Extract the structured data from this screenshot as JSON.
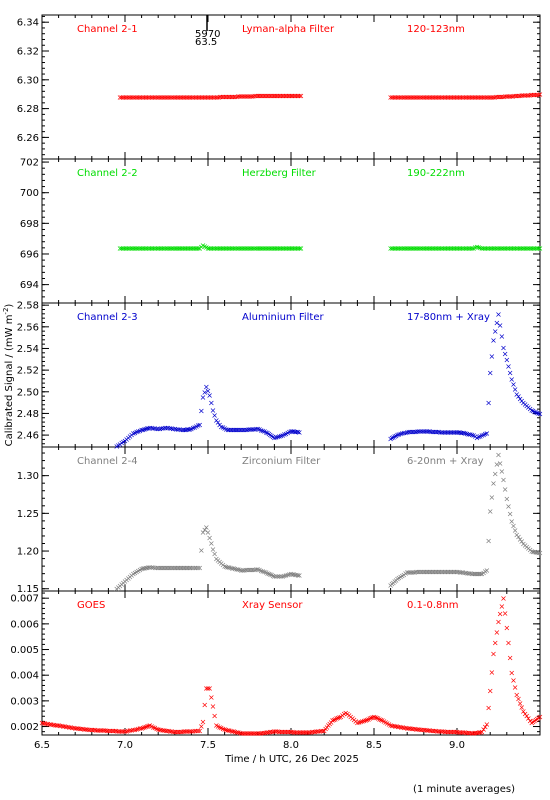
{
  "chart_data": {
    "type": "scatter",
    "xlabel": "Time / h UTC, 26 Dec 2025",
    "ylabel": "Calibrated Signal / (mW m",
    "ylabel_sup": "-2",
    "ylabel_close": ")",
    "footnote": "(1 minute averages)",
    "x_range": [
      6.5,
      9.5
    ],
    "x_ticks": [
      6.5,
      7.0,
      7.5,
      8.0,
      8.5,
      9.0
    ],
    "x_tick_labels": [
      "6.5",
      "7.0",
      "7.5",
      "8.0",
      "8.5",
      "9.0"
    ],
    "marker": {
      "label_top": "5970",
      "label_bottom": "63.5",
      "x": 7.5
    },
    "panels": [
      {
        "channel": "Channel 2-1",
        "filter": "Lyman-alpha Filter",
        "band": "120-123nm",
        "color": "#ff0000",
        "ylim": [
          6.245,
          6.345
        ],
        "y_ticks": [
          6.26,
          6.28,
          6.3,
          6.32,
          6.34
        ],
        "y_tick_labels": [
          "6.26",
          "6.28",
          "6.30",
          "6.32",
          "6.34"
        ],
        "series": [
          {
            "x": [
              6.97,
              7.2,
              7.5,
              7.8,
              8.06
            ],
            "y": [
              6.288,
              6.288,
              6.288,
              6.289,
              6.289
            ]
          },
          {
            "x": [
              8.6,
              8.9,
              9.2,
              9.5
            ],
            "y": [
              6.288,
              6.288,
              6.288,
              6.29
            ]
          }
        ]
      },
      {
        "channel": "Channel 2-2",
        "filter": "Herzberg Filter",
        "band": "190-222nm",
        "color": "#00dd00",
        "ylim": [
          692.8,
          702.2
        ],
        "y_ticks": [
          694,
          696,
          698,
          700,
          702
        ],
        "y_tick_labels": [
          "694",
          "696",
          "698",
          "700",
          "702"
        ],
        "series": [
          {
            "x": [
              6.97,
              7.3,
              7.45,
              7.47,
              7.5,
              7.8,
              8.06
            ],
            "y": [
              696.4,
              696.4,
              696.4,
              696.6,
              696.4,
              696.4,
              696.4
            ]
          },
          {
            "x": [
              8.6,
              8.9,
              9.1,
              9.12,
              9.15,
              9.5
            ],
            "y": [
              696.4,
              696.4,
              696.4,
              696.5,
              696.4,
              696.4
            ]
          }
        ]
      },
      {
        "channel": "Channel 2-3",
        "filter": "Aluminium Filter",
        "band": "17-80nm + Xray",
        "color": "#0000cc",
        "ylim": [
          2.449,
          2.582
        ],
        "y_ticks": [
          2.46,
          2.48,
          2.5,
          2.52,
          2.54,
          2.56,
          2.58
        ],
        "y_tick_labels": [
          "2.46",
          "2.48",
          "2.50",
          "2.52",
          "2.54",
          "2.56",
          "2.58"
        ],
        "series": [
          {
            "x": [
              6.95,
              7.0,
              7.05,
              7.1,
              7.15,
              7.2,
              7.25,
              7.3,
              7.35,
              7.4,
              7.45,
              7.47,
              7.49,
              7.51,
              7.53,
              7.55,
              7.58,
              7.62,
              7.7,
              7.8,
              7.85,
              7.9,
              7.95,
              8.0,
              8.05
            ],
            "y": [
              2.45,
              2.455,
              2.462,
              2.465,
              2.467,
              2.466,
              2.467,
              2.466,
              2.465,
              2.466,
              2.47,
              2.495,
              2.505,
              2.497,
              2.483,
              2.474,
              2.468,
              2.465,
              2.465,
              2.466,
              2.463,
              2.458,
              2.46,
              2.464,
              2.463
            ]
          },
          {
            "x": [
              8.6,
              8.65,
              8.7,
              8.8,
              8.9,
              9.0,
              9.05,
              9.1,
              9.12,
              9.15,
              9.18,
              9.2,
              9.22,
              9.25,
              9.28,
              9.3,
              9.33,
              9.36,
              9.4,
              9.45,
              9.5
            ],
            "y": [
              2.457,
              2.461,
              2.463,
              2.464,
              2.463,
              2.463,
              2.462,
              2.46,
              2.458,
              2.46,
              2.462,
              2.518,
              2.548,
              2.572,
              2.541,
              2.53,
              2.512,
              2.498,
              2.49,
              2.483,
              2.48
            ]
          }
        ]
      },
      {
        "channel": "Channel 2-4",
        "filter": "Zirconium Filter",
        "band": "6-20nm + Xray",
        "color": "#808080",
        "ylim": [
          1.147,
          1.338
        ],
        "y_ticks": [
          1.15,
          1.2,
          1.25,
          1.3
        ],
        "y_tick_labels": [
          "1.15",
          "1.20",
          "1.25",
          "1.30"
        ],
        "series": [
          {
            "x": [
              6.95,
              7.0,
              7.05,
              7.1,
              7.15,
              7.2,
              7.3,
              7.4,
              7.45,
              7.47,
              7.49,
              7.51,
              7.53,
              7.55,
              7.6,
              7.7,
              7.8,
              7.85,
              7.9,
              7.95,
              8.0,
              8.05
            ],
            "y": [
              1.15,
              1.16,
              1.17,
              1.177,
              1.179,
              1.178,
              1.178,
              1.178,
              1.178,
              1.225,
              1.232,
              1.218,
              1.203,
              1.19,
              1.18,
              1.175,
              1.176,
              1.172,
              1.167,
              1.167,
              1.17,
              1.168
            ]
          },
          {
            "x": [
              8.6,
              8.65,
              8.7,
              8.8,
              8.9,
              9.0,
              9.1,
              9.15,
              9.18,
              9.2,
              9.22,
              9.25,
              9.28,
              9.3,
              9.33,
              9.36,
              9.4,
              9.45,
              9.5
            ],
            "y": [
              1.155,
              1.165,
              1.172,
              1.173,
              1.173,
              1.173,
              1.17,
              1.17,
              1.175,
              1.253,
              1.29,
              1.328,
              1.295,
              1.27,
              1.24,
              1.222,
              1.21,
              1.2,
              1.198
            ]
          }
        ]
      },
      {
        "channel": "GOES",
        "filter": "Xray Sensor",
        "band": "0.1-0.8nm",
        "color": "#ff0000",
        "ylim": [
          0.00167,
          0.00728
        ],
        "y_ticks": [
          0.002,
          0.003,
          0.004,
          0.005,
          0.006,
          0.007
        ],
        "y_tick_labels": [
          "0.002",
          "0.003",
          "0.004",
          "0.005",
          "0.006",
          "0.007"
        ],
        "series": [
          {
            "x": [
              6.5,
              6.6,
              6.7,
              6.8,
              6.9,
              7.0,
              7.05,
              7.1,
              7.15,
              7.2,
              7.3,
              7.4,
              7.45,
              7.47,
              7.49,
              7.51,
              7.53,
              7.55,
              7.6,
              7.7,
              7.8,
              7.9,
              8.0,
              8.1,
              8.2,
              8.25,
              8.3,
              8.33,
              8.36,
              8.4,
              8.45,
              8.5,
              8.55,
              8.6,
              8.7,
              8.8,
              8.9,
              9.0,
              9.1,
              9.15,
              9.18,
              9.2,
              9.22,
              9.25,
              9.28,
              9.3,
              9.33,
              9.36,
              9.4,
              9.45,
              9.5
            ],
            "y": [
              0.00215,
              0.00205,
              0.00195,
              0.00188,
              0.00185,
              0.00182,
              0.00188,
              0.00195,
              0.00205,
              0.0019,
              0.0018,
              0.00183,
              0.00185,
              0.0022,
              0.0035,
              0.0035,
              0.0028,
              0.00205,
              0.0019,
              0.00175,
              0.00174,
              0.00182,
              0.0018,
              0.00178,
              0.00185,
              0.00225,
              0.0024,
              0.00255,
              0.0024,
              0.00215,
              0.00225,
              0.0024,
              0.00225,
              0.00205,
              0.00195,
              0.00188,
              0.00182,
              0.0018,
              0.00175,
              0.0018,
              0.0021,
              0.0034,
              0.00485,
              0.0061,
              0.007,
              0.00585,
              0.0041,
              0.00325,
              0.0026,
              0.00215,
              0.0024
            ]
          }
        ]
      }
    ]
  }
}
